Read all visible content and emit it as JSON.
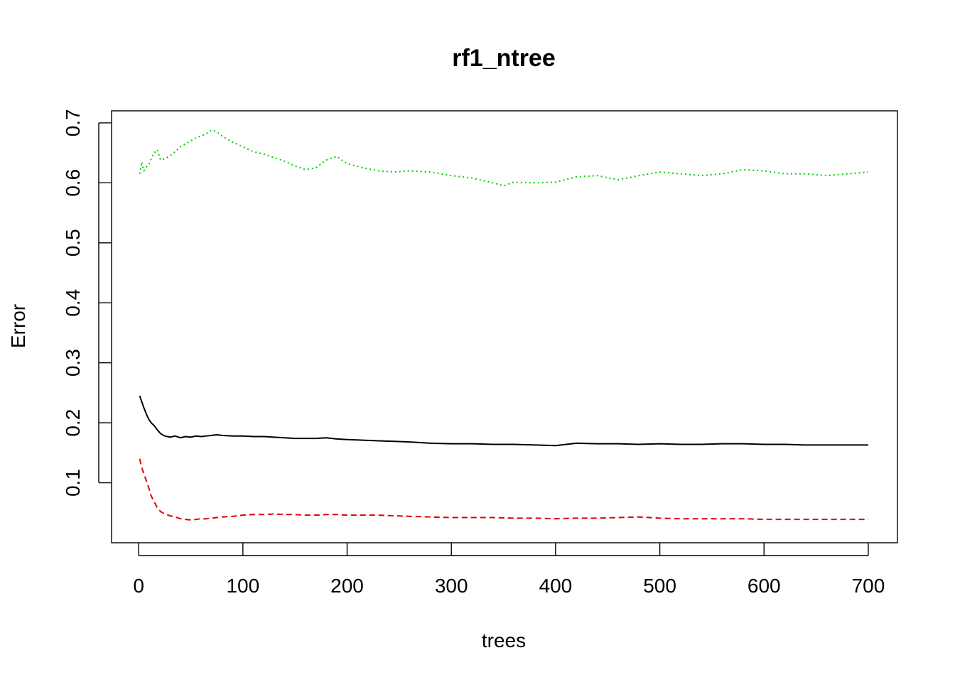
{
  "chart_data": {
    "type": "line",
    "title": "rf1_ntree",
    "xlabel": "trees",
    "ylabel": "Error",
    "xlim": [
      -26,
      728
    ],
    "ylim": [
      0.0,
      0.72
    ],
    "xticks": [
      0,
      100,
      200,
      300,
      400,
      500,
      600,
      700
    ],
    "yticks": [
      0.1,
      0.2,
      0.3,
      0.4,
      0.5,
      0.6,
      0.7
    ],
    "xtick_labels": [
      "0",
      "100",
      "200",
      "300",
      "400",
      "500",
      "600",
      "700"
    ],
    "ytick_labels": [
      "0.1",
      "0.2",
      "0.3",
      "0.4",
      "0.5",
      "0.6",
      "0.7"
    ],
    "grid": false,
    "legend": "none",
    "series": [
      {
        "color": "#000000",
        "dash": "solid",
        "x": [
          1,
          3,
          5,
          8,
          10,
          12,
          15,
          18,
          21,
          25,
          30,
          35,
          40,
          45,
          50,
          55,
          60,
          65,
          70,
          75,
          80,
          90,
          100,
          110,
          120,
          130,
          140,
          150,
          160,
          170,
          180,
          190,
          200,
          215,
          230,
          245,
          260,
          280,
          300,
          320,
          340,
          360,
          380,
          400,
          420,
          440,
          460,
          480,
          500,
          520,
          540,
          560,
          580,
          600,
          620,
          640,
          660,
          680,
          700
        ],
        "y": [
          0.245,
          0.235,
          0.225,
          0.212,
          0.205,
          0.2,
          0.195,
          0.188,
          0.182,
          0.178,
          0.176,
          0.178,
          0.175,
          0.177,
          0.176,
          0.178,
          0.177,
          0.178,
          0.179,
          0.18,
          0.179,
          0.178,
          0.178,
          0.177,
          0.177,
          0.176,
          0.175,
          0.174,
          0.174,
          0.174,
          0.175,
          0.173,
          0.172,
          0.171,
          0.17,
          0.169,
          0.168,
          0.166,
          0.165,
          0.165,
          0.164,
          0.164,
          0.163,
          0.162,
          0.166,
          0.165,
          0.165,
          0.164,
          0.165,
          0.164,
          0.164,
          0.165,
          0.165,
          0.164,
          0.164,
          0.163,
          0.163,
          0.163,
          0.163
        ]
      },
      {
        "color": "#DF0000",
        "dash": "dashed",
        "x": [
          1,
          3,
          5,
          8,
          10,
          12,
          15,
          18,
          21,
          25,
          30,
          35,
          40,
          45,
          50,
          55,
          60,
          65,
          70,
          75,
          80,
          90,
          100,
          110,
          120,
          130,
          140,
          150,
          160,
          170,
          180,
          190,
          200,
          215,
          230,
          245,
          260,
          280,
          300,
          320,
          340,
          360,
          380,
          400,
          420,
          440,
          460,
          480,
          500,
          520,
          540,
          560,
          580,
          600,
          620,
          640,
          660,
          680,
          700
        ],
        "y": [
          0.14,
          0.125,
          0.115,
          0.1,
          0.09,
          0.078,
          0.068,
          0.058,
          0.052,
          0.048,
          0.045,
          0.043,
          0.04,
          0.039,
          0.038,
          0.039,
          0.04,
          0.04,
          0.041,
          0.042,
          0.043,
          0.044,
          0.046,
          0.047,
          0.047,
          0.048,
          0.047,
          0.047,
          0.046,
          0.046,
          0.047,
          0.047,
          0.046,
          0.046,
          0.046,
          0.045,
          0.044,
          0.043,
          0.042,
          0.042,
          0.042,
          0.041,
          0.041,
          0.04,
          0.041,
          0.041,
          0.042,
          0.043,
          0.041,
          0.04,
          0.04,
          0.04,
          0.04,
          0.039,
          0.039,
          0.039,
          0.039,
          0.039,
          0.039
        ]
      },
      {
        "color": "#00CD00",
        "dash": "dotted",
        "x": [
          1,
          3,
          5,
          8,
          10,
          12,
          15,
          18,
          21,
          25,
          30,
          35,
          40,
          45,
          50,
          55,
          60,
          65,
          70,
          75,
          80,
          90,
          100,
          110,
          120,
          130,
          140,
          150,
          160,
          170,
          180,
          190,
          200,
          215,
          230,
          245,
          260,
          280,
          300,
          320,
          340,
          350,
          360,
          380,
          400,
          420,
          440,
          460,
          480,
          500,
          520,
          540,
          560,
          580,
          600,
          620,
          640,
          660,
          680,
          700
        ],
        "y": [
          0.615,
          0.635,
          0.62,
          0.628,
          0.632,
          0.64,
          0.65,
          0.655,
          0.638,
          0.64,
          0.645,
          0.652,
          0.66,
          0.665,
          0.67,
          0.675,
          0.678,
          0.682,
          0.688,
          0.685,
          0.678,
          0.668,
          0.66,
          0.652,
          0.648,
          0.642,
          0.636,
          0.628,
          0.622,
          0.625,
          0.638,
          0.644,
          0.632,
          0.625,
          0.62,
          0.618,
          0.62,
          0.618,
          0.612,
          0.608,
          0.6,
          0.595,
          0.601,
          0.6,
          0.601,
          0.61,
          0.612,
          0.605,
          0.612,
          0.618,
          0.615,
          0.612,
          0.615,
          0.622,
          0.62,
          0.615,
          0.615,
          0.612,
          0.615,
          0.618
        ]
      }
    ]
  }
}
